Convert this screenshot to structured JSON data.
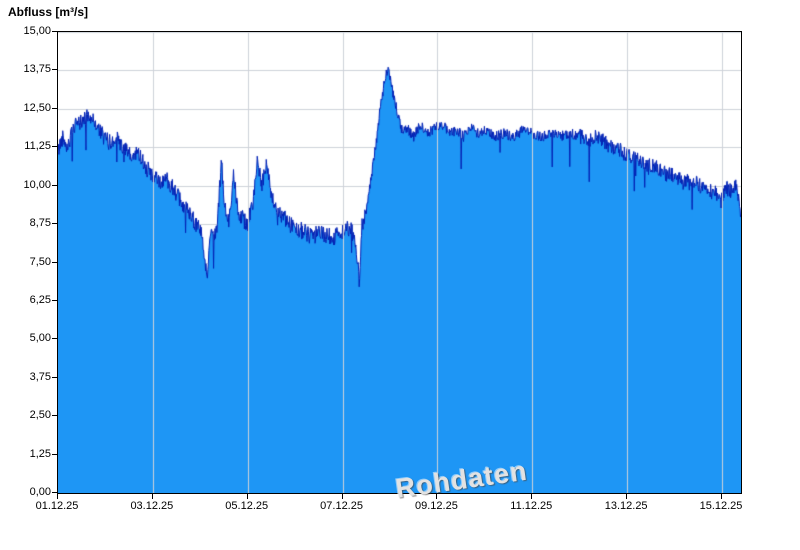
{
  "title": "Abfluss [m³/s]",
  "watermark": "Rohdaten",
  "chart_data": {
    "type": "area",
    "title": "Abfluss [m³/s]",
    "ylabel": "Abfluss [m³/s]",
    "xlabel": "",
    "unit": "m³/s",
    "ylim": [
      0,
      15
    ],
    "xlim_days": [
      1.0,
      15.4
    ],
    "grid": true,
    "legend": "none",
    "y_tick_values": [
      0,
      1.25,
      2.5,
      3.75,
      5,
      6.25,
      7.5,
      8.75,
      10,
      11.25,
      12.5,
      13.75,
      15
    ],
    "y_tick_labels": [
      "0,00",
      "1,25",
      "2,50",
      "3,75",
      "5,00",
      "6,25",
      "7,50",
      "8,75",
      "10,00",
      "11,25",
      "12,50",
      "13,75",
      "15,00"
    ],
    "x_tick_days": [
      1,
      3,
      5,
      7,
      9,
      11,
      13,
      15
    ],
    "x_tick_labels": [
      "01.12.25",
      "03.12.25",
      "05.12.25",
      "07.12.25",
      "09.12.25",
      "11.12.25",
      "13.12.25",
      "15.12.25"
    ],
    "colors": {
      "fill": "#1e96f5",
      "line": "#0020b4",
      "grid": "#cdd2d9",
      "axis": "#000000",
      "watermark": "#e2e2e2",
      "background": "#ffffff"
    },
    "series": [
      {
        "name": "Abfluss Rohdaten",
        "noise_amplitude": 0.25,
        "keypoints": [
          [
            1.0,
            11.1
          ],
          [
            1.1,
            11.6
          ],
          [
            1.2,
            11.3
          ],
          [
            1.35,
            11.9
          ],
          [
            1.5,
            12.1
          ],
          [
            1.65,
            12.3
          ],
          [
            1.8,
            12.0
          ],
          [
            1.95,
            11.6
          ],
          [
            2.1,
            11.4
          ],
          [
            2.25,
            11.5
          ],
          [
            2.4,
            11.2
          ],
          [
            2.55,
            10.9
          ],
          [
            2.7,
            11.1
          ],
          [
            2.85,
            10.6
          ],
          [
            3.0,
            10.3
          ],
          [
            3.15,
            10.1
          ],
          [
            3.3,
            10.2
          ],
          [
            3.45,
            9.9
          ],
          [
            3.6,
            9.4
          ],
          [
            3.75,
            9.2
          ],
          [
            3.9,
            8.8
          ],
          [
            4.0,
            8.6
          ],
          [
            4.1,
            7.6
          ],
          [
            4.15,
            7.1
          ],
          [
            4.2,
            8.3
          ],
          [
            4.35,
            8.6
          ],
          [
            4.45,
            10.8
          ],
          [
            4.5,
            9.4
          ],
          [
            4.6,
            8.8
          ],
          [
            4.7,
            10.4
          ],
          [
            4.8,
            9.2
          ],
          [
            4.9,
            8.9
          ],
          [
            5.0,
            8.8
          ],
          [
            5.1,
            9.3
          ],
          [
            5.2,
            10.9
          ],
          [
            5.3,
            10.0
          ],
          [
            5.4,
            10.8
          ],
          [
            5.5,
            9.6
          ],
          [
            5.6,
            9.2
          ],
          [
            5.75,
            9.0
          ],
          [
            5.9,
            8.7
          ],
          [
            6.05,
            8.6
          ],
          [
            6.2,
            8.5
          ],
          [
            6.35,
            8.3
          ],
          [
            6.5,
            8.5
          ],
          [
            6.65,
            8.4
          ],
          [
            6.8,
            8.3
          ],
          [
            6.95,
            8.5
          ],
          [
            7.1,
            8.6
          ],
          [
            7.2,
            8.5
          ],
          [
            7.3,
            7.8
          ],
          [
            7.35,
            6.9
          ],
          [
            7.4,
            8.6
          ],
          [
            7.5,
            9.3
          ],
          [
            7.6,
            10.2
          ],
          [
            7.7,
            11.3
          ],
          [
            7.8,
            12.6
          ],
          [
            7.9,
            13.5
          ],
          [
            7.97,
            13.85
          ],
          [
            8.05,
            13.1
          ],
          [
            8.15,
            12.4
          ],
          [
            8.25,
            11.8
          ],
          [
            8.35,
            11.9
          ],
          [
            8.5,
            11.6
          ],
          [
            8.65,
            12.0
          ],
          [
            8.8,
            11.7
          ],
          [
            8.95,
            11.9
          ],
          [
            9.1,
            12.0
          ],
          [
            9.25,
            11.7
          ],
          [
            9.4,
            11.8
          ],
          [
            9.55,
            11.6
          ],
          [
            9.7,
            11.9
          ],
          [
            9.85,
            11.7
          ],
          [
            10.0,
            11.8
          ],
          [
            10.2,
            11.6
          ],
          [
            10.4,
            11.7
          ],
          [
            10.6,
            11.6
          ],
          [
            10.8,
            11.8
          ],
          [
            11.0,
            11.7
          ],
          [
            11.2,
            11.6
          ],
          [
            11.4,
            11.7
          ],
          [
            11.6,
            11.6
          ],
          [
            11.8,
            11.7
          ],
          [
            12.0,
            11.6
          ],
          [
            12.2,
            11.5
          ],
          [
            12.4,
            11.6
          ],
          [
            12.6,
            11.3
          ],
          [
            12.8,
            11.2
          ],
          [
            13.0,
            11.0
          ],
          [
            13.2,
            10.9
          ],
          [
            13.4,
            10.7
          ],
          [
            13.6,
            10.6
          ],
          [
            13.8,
            10.4
          ],
          [
            14.0,
            10.3
          ],
          [
            14.2,
            10.1
          ],
          [
            14.4,
            10.2
          ],
          [
            14.6,
            9.9
          ],
          [
            14.8,
            9.8
          ],
          [
            15.0,
            9.7
          ],
          [
            15.1,
            9.9
          ],
          [
            15.2,
            9.8
          ],
          [
            15.3,
            10.0
          ],
          [
            15.4,
            9.0
          ]
        ]
      }
    ]
  }
}
